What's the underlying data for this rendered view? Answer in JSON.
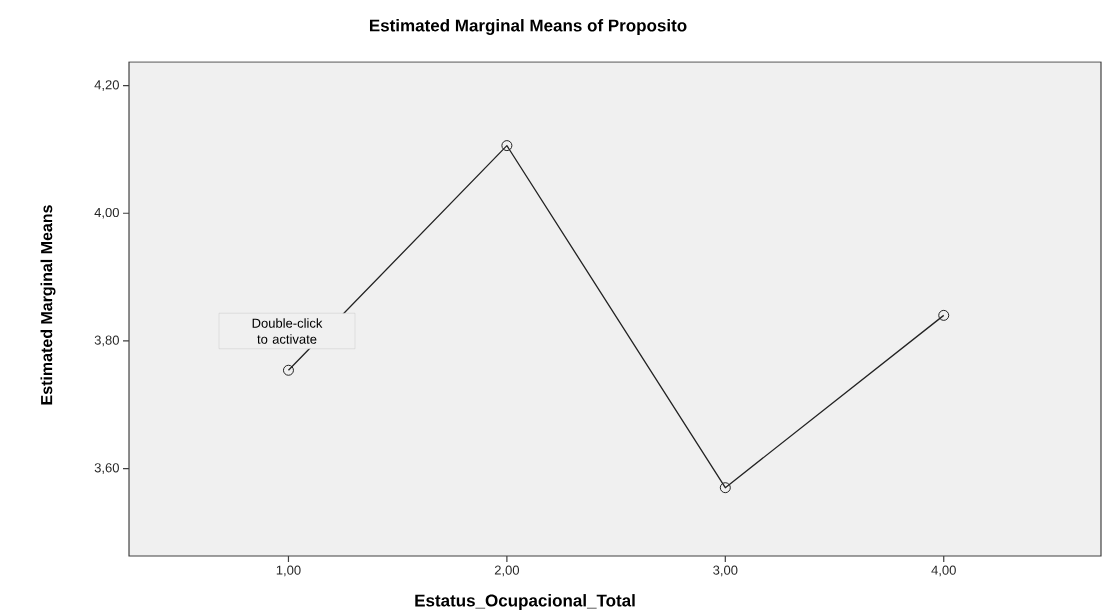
{
  "chart_data": {
    "type": "line",
    "title": "Estimated Marginal Means of Proposito",
    "xlabel": "Estatus_Ocupacional_Total",
    "ylabel": "Estimated Marginal Means",
    "x": [
      1,
      2,
      3,
      4
    ],
    "values": [
      3.754,
      4.106,
      3.57,
      3.84
    ],
    "color": "#222222",
    "marker": "circle",
    "xlim": [
      0.27,
      4.72
    ],
    "ylim": [
      3.463,
      4.237
    ],
    "xticks": [
      {
        "value": 1,
        "label": "1,00"
      },
      {
        "value": 2,
        "label": "2,00"
      },
      {
        "value": 3,
        "label": "3,00"
      },
      {
        "value": 4,
        "label": "4,00"
      }
    ],
    "yticks": [
      {
        "value": 3.6,
        "label": "3,60"
      },
      {
        "value": 3.8,
        "label": "3,80"
      },
      {
        "value": 4.0,
        "label": "4,00"
      },
      {
        "value": 4.2,
        "label": "4,20"
      }
    ],
    "annotations": [
      "Double-click to activate"
    ]
  }
}
